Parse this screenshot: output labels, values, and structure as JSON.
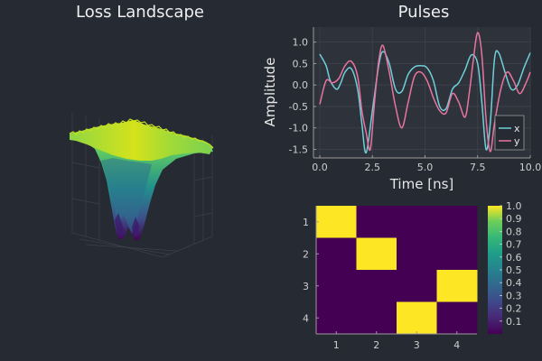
{
  "chart_data": [
    {
      "type": "surface",
      "title": "Loss Landscape",
      "colormap": "viridis"
    },
    {
      "type": "line",
      "title": "Pulses",
      "xlabel": "Time [ns]",
      "ylabel": "Amplitude",
      "xlim": [
        -0.3,
        10.0
      ],
      "ylim": [
        -1.7,
        1.35
      ],
      "xticks": [
        "0.0",
        "2.5",
        "5.0",
        "7.5",
        "10.0"
      ],
      "xtick_values": [
        0,
        2.5,
        5,
        7.5,
        10
      ],
      "yticks": [
        "1.0",
        "0.5",
        "0.0",
        "-0.5",
        "-1.0",
        "-1.5"
      ],
      "ytick_values": [
        1.0,
        0.5,
        0.0,
        -0.5,
        -1.0,
        -1.5
      ],
      "grid": true,
      "legend_position": "bottom-right",
      "series": [
        {
          "name": "x",
          "color": "#6fcfd9",
          "x": [
            0,
            0.3,
            0.5,
            0.8,
            1.0,
            1.2,
            1.5,
            1.8,
            2.0,
            2.2,
            2.5,
            2.8,
            3.0,
            3.3,
            3.6,
            3.9,
            4.2,
            4.5,
            4.8,
            5.1,
            5.4,
            5.7,
            6.0,
            6.3,
            6.6,
            6.9,
            7.2,
            7.5,
            7.7,
            7.9,
            8.1,
            8.3,
            8.5,
            8.8,
            9.1,
            9.4,
            9.7,
            10.0
          ],
          "values": [
            0.72,
            0.45,
            0.1,
            -0.1,
            0.05,
            0.3,
            0.38,
            -0.1,
            -0.9,
            -1.58,
            -0.6,
            0.45,
            0.78,
            0.5,
            -0.1,
            -0.15,
            0.25,
            0.42,
            0.45,
            0.4,
            0.1,
            -0.5,
            -0.55,
            -0.1,
            0.05,
            0.35,
            0.7,
            0.5,
            -0.4,
            -1.5,
            -0.9,
            0.6,
            0.75,
            0.3,
            -0.1,
            0.0,
            0.4,
            0.75
          ]
        },
        {
          "name": "y",
          "color": "#e8749f",
          "x": [
            0,
            0.3,
            0.6,
            0.9,
            1.2,
            1.5,
            1.8,
            2.0,
            2.2,
            2.4,
            2.6,
            2.8,
            3.0,
            3.3,
            3.6,
            3.9,
            4.2,
            4.5,
            4.8,
            5.1,
            5.4,
            5.7,
            6.0,
            6.3,
            6.6,
            6.9,
            7.1,
            7.3,
            7.5,
            7.7,
            7.9,
            8.1,
            8.3,
            8.6,
            8.9,
            9.2,
            9.5,
            9.8,
            10.0
          ],
          "values": [
            -0.45,
            0.1,
            0.05,
            0.15,
            0.45,
            0.55,
            0.2,
            -0.6,
            -1.1,
            -1.5,
            -0.4,
            0.55,
            0.92,
            0.3,
            -0.5,
            -1.0,
            -0.4,
            0.2,
            0.3,
            0.1,
            -0.3,
            -0.6,
            -0.65,
            -0.2,
            -0.4,
            -0.75,
            -0.2,
            0.6,
            1.22,
            0.7,
            -0.8,
            -1.55,
            -0.9,
            -0.1,
            0.3,
            0.1,
            -0.2,
            0.05,
            0.3
          ]
        }
      ]
    },
    {
      "type": "heatmap",
      "xticks": [
        "1",
        "2",
        "3",
        "4"
      ],
      "yticks": [
        "1",
        "2",
        "3",
        "4"
      ],
      "colormap": "viridis",
      "values": [
        [
          1,
          0,
          0,
          0
        ],
        [
          0,
          1,
          0,
          0
        ],
        [
          0,
          0,
          0,
          1
        ],
        [
          0,
          0,
          1,
          0
        ]
      ],
      "colorbar_ticks": [
        "1.0",
        "0.9",
        "0.8",
        "0.7",
        "0.6",
        "0.5",
        "0.4",
        "0.3",
        "0.2",
        "0.1"
      ],
      "colorbar_values": [
        1.0,
        0.9,
        0.8,
        0.7,
        0.6,
        0.5,
        0.4,
        0.3,
        0.2,
        0.1
      ],
      "colorbar_range": [
        0,
        1
      ]
    }
  ]
}
